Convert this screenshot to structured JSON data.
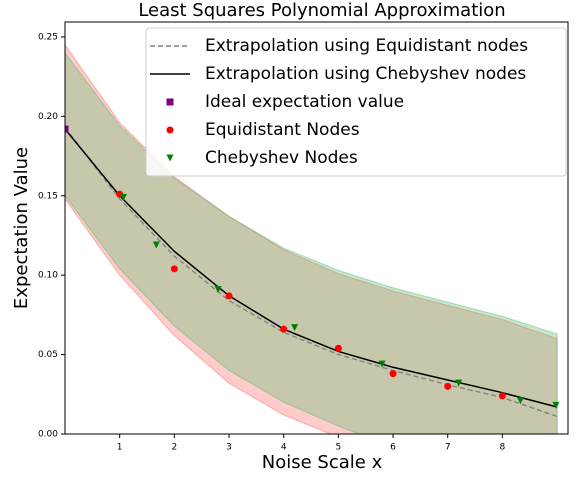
{
  "chart_data": {
    "type": "line",
    "title": "Least Squares Polynomial Approximation",
    "xlabel": "Noise Scale x",
    "ylabel": "Expectation Value",
    "xlim": [
      0,
      9.2
    ],
    "ylim": [
      0,
      0.2594
    ],
    "xticks": [
      1,
      2,
      3,
      4,
      5,
      6,
      7,
      8
    ],
    "yticks": [
      {
        "value": 0,
        "label": "0.00"
      },
      {
        "value": 0.05,
        "label": "0.05"
      },
      {
        "value": 0.1,
        "label": "0.10"
      },
      {
        "value": 0.15,
        "label": "0.15"
      },
      {
        "value": 0.2,
        "label": "0.20"
      },
      {
        "value": 0.25,
        "label": "0.25"
      }
    ],
    "legend": "upper right",
    "bands": [
      {
        "color": "#ff6b6b",
        "x": [
          0,
          1,
          2,
          3,
          4,
          5,
          6,
          7,
          8,
          9
        ],
        "upper": [
          0.245,
          0.196,
          0.162,
          0.137,
          0.116,
          0.101,
          0.09,
          0.081,
          0.072,
          0.06
        ],
        "lower": [
          0.148,
          0.1,
          0.062,
          0.032,
          0.012,
          -0.002,
          -0.012,
          -0.02,
          -0.026,
          -0.032
        ]
      },
      {
        "color": "#5cc070",
        "x": [
          0,
          1,
          2,
          3,
          4,
          5,
          6,
          7,
          8,
          9
        ],
        "upper": [
          0.24,
          0.194,
          0.161,
          0.137,
          0.117,
          0.103,
          0.092,
          0.083,
          0.074,
          0.063
        ],
        "lower": [
          0.15,
          0.104,
          0.068,
          0.04,
          0.02,
          0.005,
          -0.008,
          -0.016,
          -0.022,
          -0.028
        ]
      }
    ],
    "series": [
      {
        "name": "Extrapolation using Equidistant nodes",
        "kind": "line",
        "dash": true,
        "color": "#808080",
        "x": [
          0,
          1,
          2,
          3,
          4,
          5,
          6,
          7,
          8,
          9
        ],
        "values": [
          0.193,
          0.148,
          0.112,
          0.084,
          0.064,
          0.05,
          0.04,
          0.031,
          0.023,
          0.011
        ]
      },
      {
        "name": "Extrapolation using Chebyshev nodes",
        "kind": "line",
        "dash": false,
        "color": "#000000",
        "x": [
          0,
          1,
          2,
          3,
          4,
          5,
          6,
          7,
          8,
          9
        ],
        "values": [
          0.192,
          0.15,
          0.115,
          0.087,
          0.066,
          0.052,
          0.042,
          0.034,
          0.026,
          0.017
        ]
      },
      {
        "name": "Ideal expectation value",
        "kind": "scatter",
        "marker": "square",
        "color": "#800080",
        "x": [
          0
        ],
        "values": [
          0.192
        ]
      },
      {
        "name": "Equidistant Nodes",
        "kind": "scatter",
        "marker": "circle",
        "color": "#ff0000",
        "x": [
          1,
          2,
          3,
          4,
          5,
          6,
          7,
          8
        ],
        "values": [
          0.151,
          0.104,
          0.087,
          0.066,
          0.054,
          0.038,
          0.03,
          0.024
        ]
      },
      {
        "name": "Chebyshev Nodes",
        "kind": "scatter",
        "marker": "triangle",
        "color": "#008000",
        "x": [
          1.07,
          1.67,
          2.8,
          4.2,
          5.8,
          7.2,
          8.33,
          8.98
        ],
        "values": [
          0.149,
          0.119,
          0.091,
          0.067,
          0.044,
          0.032,
          0.021,
          0.018
        ]
      }
    ]
  }
}
